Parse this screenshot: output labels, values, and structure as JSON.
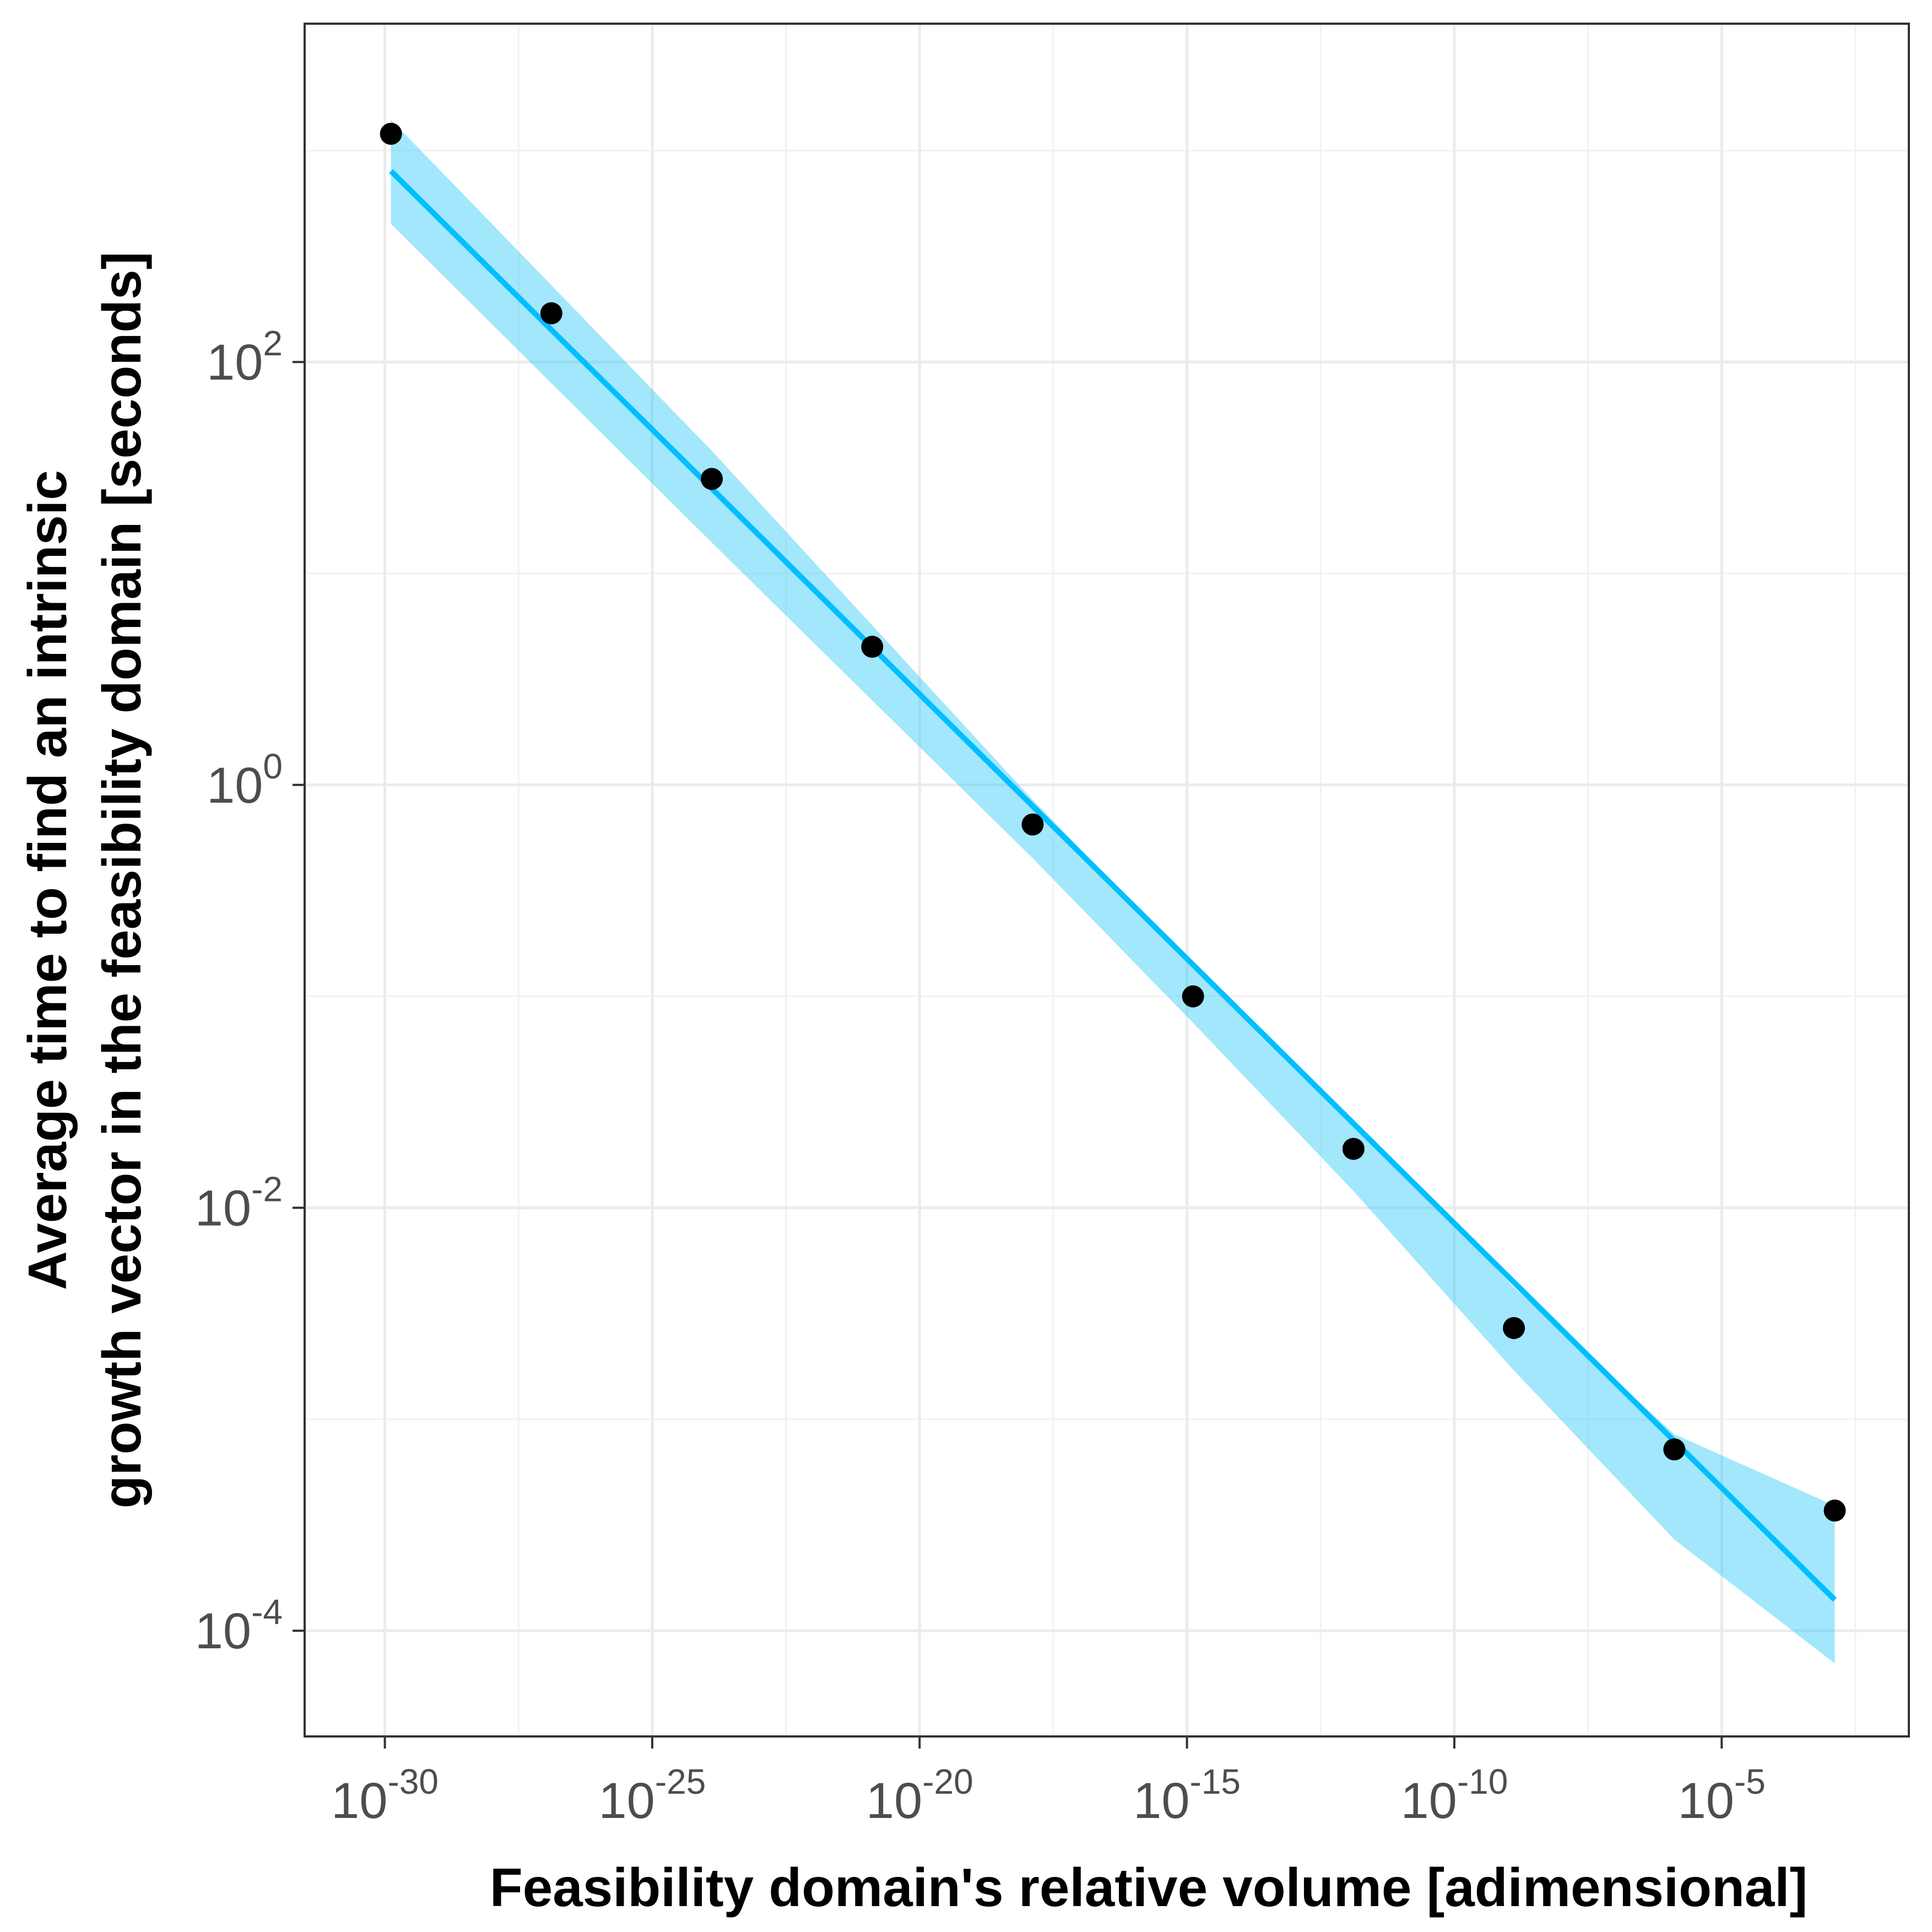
{
  "chart_data": {
    "type": "scatter",
    "title": "",
    "xlabel": "Feasibility domain's relative volume [adimensional]",
    "ylabel_lines": [
      "Average time to find an intrinsic",
      "growth vector in the feasibility domain [seconds]"
    ],
    "x_scale": "log10",
    "y_scale": "log10",
    "xlim": [
      "1e-31.5",
      "1e-1.5"
    ],
    "ylim": [
      "1e-4.5",
      "1e3.6"
    ],
    "x_ticks": [
      {
        "base": "10",
        "exp": "-30",
        "value": 1e-30
      },
      {
        "base": "10",
        "exp": "-25",
        "value": 1e-25
      },
      {
        "base": "10",
        "exp": "-20",
        "value": 1e-20
      },
      {
        "base": "10",
        "exp": "-15",
        "value": 1e-15
      },
      {
        "base": "10",
        "exp": "-10",
        "value": 1e-10
      },
      {
        "base": "10",
        "exp": "-5",
        "value": 1e-05
      }
    ],
    "y_ticks": [
      {
        "base": "10",
        "exp": "2",
        "value": 100
      },
      {
        "base": "10",
        "exp": "0",
        "value": 1
      },
      {
        "base": "10",
        "exp": "-2",
        "value": 0.01
      },
      {
        "base": "10",
        "exp": "-4",
        "value": 0.0001
      }
    ],
    "grid": true,
    "colors": {
      "points": "#000000",
      "fit_line": "#00bfff",
      "ribbon": "#33c9f9",
      "ribbon_opacity": 0.45,
      "grid_major": "#ebebeb",
      "grid_minor": "#f2f2f2",
      "panel_border": "#333333",
      "tick_text": "#4d4d4d"
    },
    "points": [
      {
        "x": 1.3e-30,
        "y": 1200
      },
      {
        "x": 1.3e-27,
        "y": 170
      },
      {
        "x": 1.3e-24,
        "y": 28
      },
      {
        "x": 1.3e-21,
        "y": 4.5
      },
      {
        "x": 1.3e-18,
        "y": 0.65
      },
      {
        "x": 1.3e-15,
        "y": 0.1
      },
      {
        "x": 1.3e-12,
        "y": 0.019
      },
      {
        "x": 1.3e-09,
        "y": 0.0027
      },
      {
        "x": 1.3e-06,
        "y": 0.00072
      },
      {
        "x": 0.0013,
        "y": 0.00037
      }
    ],
    "fit_line": [
      {
        "x": 1.3e-30,
        "y": 800
      },
      {
        "x": 0.0013,
        "y": 0.00014
      }
    ],
    "ribbon": [
      {
        "x": 1.3e-30,
        "ymin": 450,
        "ymax": 1400
      },
      {
        "x": 1.3e-24,
        "ymin": 14,
        "ymax": 38
      },
      {
        "x": 1.3e-18,
        "ymin": 0.45,
        "ymax": 0.85
      },
      {
        "x": 1.3e-15,
        "ymin": 0.075,
        "ymax": 0.14
      },
      {
        "x": 1.3e-12,
        "ymin": 0.012,
        "ymax": 0.026
      },
      {
        "x": 1.3e-09,
        "ymin": 0.0017,
        "ymax": 0.0042
      },
      {
        "x": 1.3e-06,
        "ymin": 0.00027,
        "ymax": 0.00085
      },
      {
        "x": 0.0013,
        "ymin": 7e-05,
        "ymax": 0.00039
      }
    ]
  }
}
